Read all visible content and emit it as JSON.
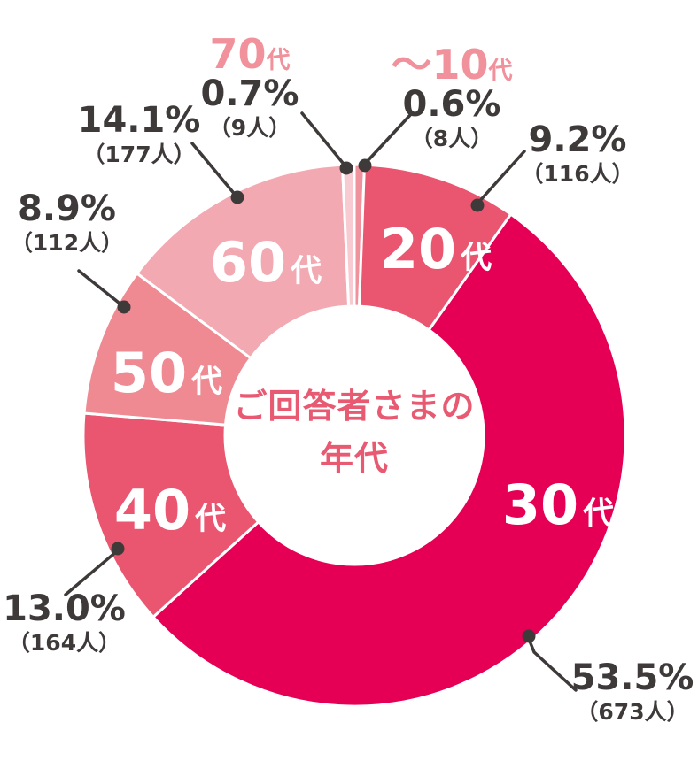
{
  "title": {
    "line1": "ご回答者さまの",
    "line2": "年代"
  },
  "colors": {
    "text_dark": "#3E3A39",
    "center_title": "#E85A72",
    "thin_slice_label_pink": "#F0919B",
    "leader_line": "#3E3A39",
    "background": "#FFFFFF"
  },
  "chart_data": {
    "type": "pie",
    "donut": true,
    "start_angle": "top",
    "direction": "clockwise",
    "title": "ご回答者さまの年代",
    "legend": "none",
    "slices": [
      {
        "key": "10s",
        "label": "～10代",
        "label_num": "～10",
        "label_suffix": "代",
        "percent": 0.6,
        "percent_label": "0.6%",
        "count": 8,
        "count_label": "（8人）",
        "color": "#F0929E"
      },
      {
        "key": "20s",
        "label": "20代",
        "label_num": "20",
        "label_suffix": "代",
        "percent": 9.2,
        "percent_label": "9.2%",
        "count": 116,
        "count_label": "（116人）",
        "color": "#EA5570"
      },
      {
        "key": "30s",
        "label": "30代",
        "label_num": "30",
        "label_suffix": "代",
        "percent": 53.5,
        "percent_label": "53.5%",
        "count": 673,
        "count_label": "（673人）",
        "color": "#E60055"
      },
      {
        "key": "40s",
        "label": "40代",
        "label_num": "40",
        "label_suffix": "代",
        "percent": 13.0,
        "percent_label": "13.0%",
        "count": 164,
        "count_label": "（164人）",
        "color": "#EA5570"
      },
      {
        "key": "50s",
        "label": "50代",
        "label_num": "50",
        "label_suffix": "代",
        "percent": 8.9,
        "percent_label": "8.9%",
        "count": 112,
        "count_label": "（112人）",
        "color": "#EF8A93"
      },
      {
        "key": "60s",
        "label": "60代",
        "label_num": "60",
        "label_suffix": "代",
        "percent": 14.1,
        "percent_label": "14.1%",
        "count": 177,
        "count_label": "（177人）",
        "color": "#F2A9B2"
      },
      {
        "key": "70s",
        "label": "70代",
        "label_num": "70",
        "label_suffix": "代",
        "percent": 0.7,
        "percent_label": "0.7%",
        "count": 9,
        "count_label": "（9人）",
        "color": "#F8CBD3"
      }
    ]
  }
}
